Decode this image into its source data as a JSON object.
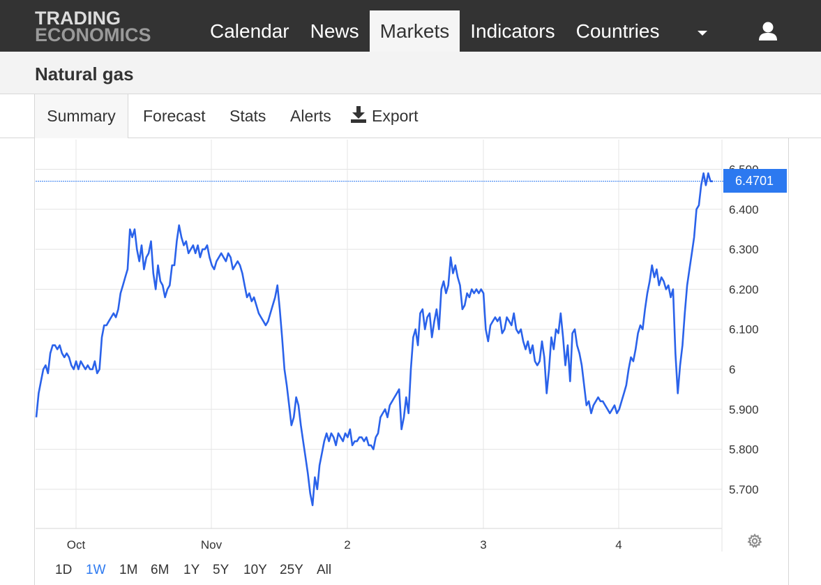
{
  "header": {
    "logo_line1": "TRADING",
    "logo_line2": "ECONOMICS",
    "nav": [
      "Calendar",
      "News",
      "Markets",
      "Indicators",
      "Countries"
    ],
    "active_nav": "Markets"
  },
  "page": {
    "title": "Natural gas"
  },
  "tabs": {
    "summary": "Summary",
    "forecast": "Forecast",
    "stats": "Stats",
    "alerts": "Alerts",
    "export": "Export"
  },
  "ranges": [
    "1D",
    "1W",
    "1M",
    "6M",
    "1Y",
    "5Y",
    "10Y",
    "25Y",
    "All"
  ],
  "active_range": "1W",
  "colors": {
    "accent": "#2c79f0",
    "line": "#2a62ea",
    "topbar": "#333333"
  },
  "chart_data": {
    "type": "line",
    "x_tick_labels": [
      "Oct",
      "Nov",
      "2",
      "3",
      "4"
    ],
    "y_tick_labels": [
      "5.700",
      "5.800",
      "5.900",
      "6",
      "6.100",
      "6.200",
      "6.300",
      "6.400",
      "6.500"
    ],
    "ylim": [
      5.6,
      6.55
    ],
    "grid": true,
    "last_value": 6.4701,
    "last_value_label": "6.4701",
    "series": [
      {
        "values": [
          5.88,
          5.94,
          5.97,
          6.0,
          6.01,
          5.99,
          6.04,
          6.06,
          6.06,
          6.05,
          6.06,
          6.04,
          6.03,
          6.04,
          6.03,
          6.01,
          6.0,
          6.02,
          6.0,
          6.02,
          6.01,
          6.0,
          6.01,
          6.0,
          6.0,
          6.02,
          5.99,
          6.0,
          6.08,
          6.11,
          6.11,
          6.12,
          6.13,
          6.14,
          6.13,
          6.15,
          6.19,
          6.21,
          6.23,
          6.25,
          6.35,
          6.33,
          6.35,
          6.3,
          6.27,
          6.31,
          6.25,
          6.28,
          6.29,
          6.32,
          6.24,
          6.2,
          6.26,
          6.22,
          6.21,
          6.18,
          6.2,
          6.21,
          6.26,
          6.26,
          6.32,
          6.36,
          6.33,
          6.31,
          6.32,
          6.29,
          6.3,
          6.31,
          6.29,
          6.31,
          6.28,
          6.3,
          6.3,
          6.31,
          6.28,
          6.26,
          6.25,
          6.27,
          6.28,
          6.29,
          6.28,
          6.27,
          6.29,
          6.28,
          6.25,
          6.26,
          6.27,
          6.26,
          6.24,
          6.21,
          6.18,
          6.19,
          6.17,
          6.18,
          6.16,
          6.14,
          6.13,
          6.12,
          6.11,
          6.12,
          6.14,
          6.16,
          6.18,
          6.21,
          6.15,
          6.08,
          6.0,
          5.96,
          5.91,
          5.86,
          5.88,
          5.93,
          5.91,
          5.86,
          5.82,
          5.78,
          5.74,
          5.69,
          5.66,
          5.73,
          5.7,
          5.76,
          5.79,
          5.82,
          5.84,
          5.82,
          5.84,
          5.83,
          5.81,
          5.84,
          5.83,
          5.82,
          5.84,
          5.83,
          5.85,
          5.81,
          5.82,
          5.82,
          5.83,
          5.83,
          5.82,
          5.83,
          5.81,
          5.81,
          5.8,
          5.83,
          5.84,
          5.88,
          5.89,
          5.9,
          5.88,
          5.91,
          5.92,
          5.93,
          5.94,
          5.95,
          5.85,
          5.88,
          5.93,
          5.89,
          6.0,
          6.08,
          6.1,
          6.06,
          6.14,
          6.15,
          6.1,
          6.13,
          6.14,
          6.08,
          6.12,
          6.15,
          6.1,
          6.2,
          6.22,
          6.19,
          6.21,
          6.28,
          6.24,
          6.26,
          6.23,
          6.21,
          6.15,
          6.16,
          6.19,
          6.18,
          6.2,
          6.19,
          6.2,
          6.19,
          6.2,
          6.19,
          6.1,
          6.07,
          6.11,
          6.12,
          6.13,
          6.12,
          6.13,
          6.09,
          6.1,
          6.13,
          6.12,
          6.11,
          6.14,
          6.1,
          6.09,
          6.1,
          6.07,
          6.05,
          6.07,
          6.04,
          6.06,
          6.02,
          6.01,
          6.02,
          6.07,
          6.03,
          5.94,
          6.0,
          6.08,
          6.05,
          6.1,
          6.09,
          6.14,
          6.08,
          6.01,
          6.06,
          5.97,
          6.09,
          6.1,
          6.06,
          6.04,
          6.01,
          5.96,
          5.91,
          5.92,
          5.89,
          5.91,
          5.92,
          5.93,
          5.92,
          5.92,
          5.91,
          5.9,
          5.89,
          5.9,
          5.91,
          5.89,
          5.9,
          5.92,
          5.94,
          5.96,
          6.0,
          6.03,
          6.02,
          6.05,
          6.09,
          6.11,
          6.1,
          6.15,
          6.19,
          6.22,
          6.26,
          6.23,
          6.25,
          6.21,
          6.23,
          6.22,
          6.2,
          6.21,
          6.18,
          6.2,
          6.04,
          5.94,
          6.01,
          6.06,
          6.14,
          6.21,
          6.25,
          6.29,
          6.33,
          6.4,
          6.41,
          6.46,
          6.49,
          6.46,
          6.49,
          6.47,
          6.47
        ]
      }
    ]
  }
}
